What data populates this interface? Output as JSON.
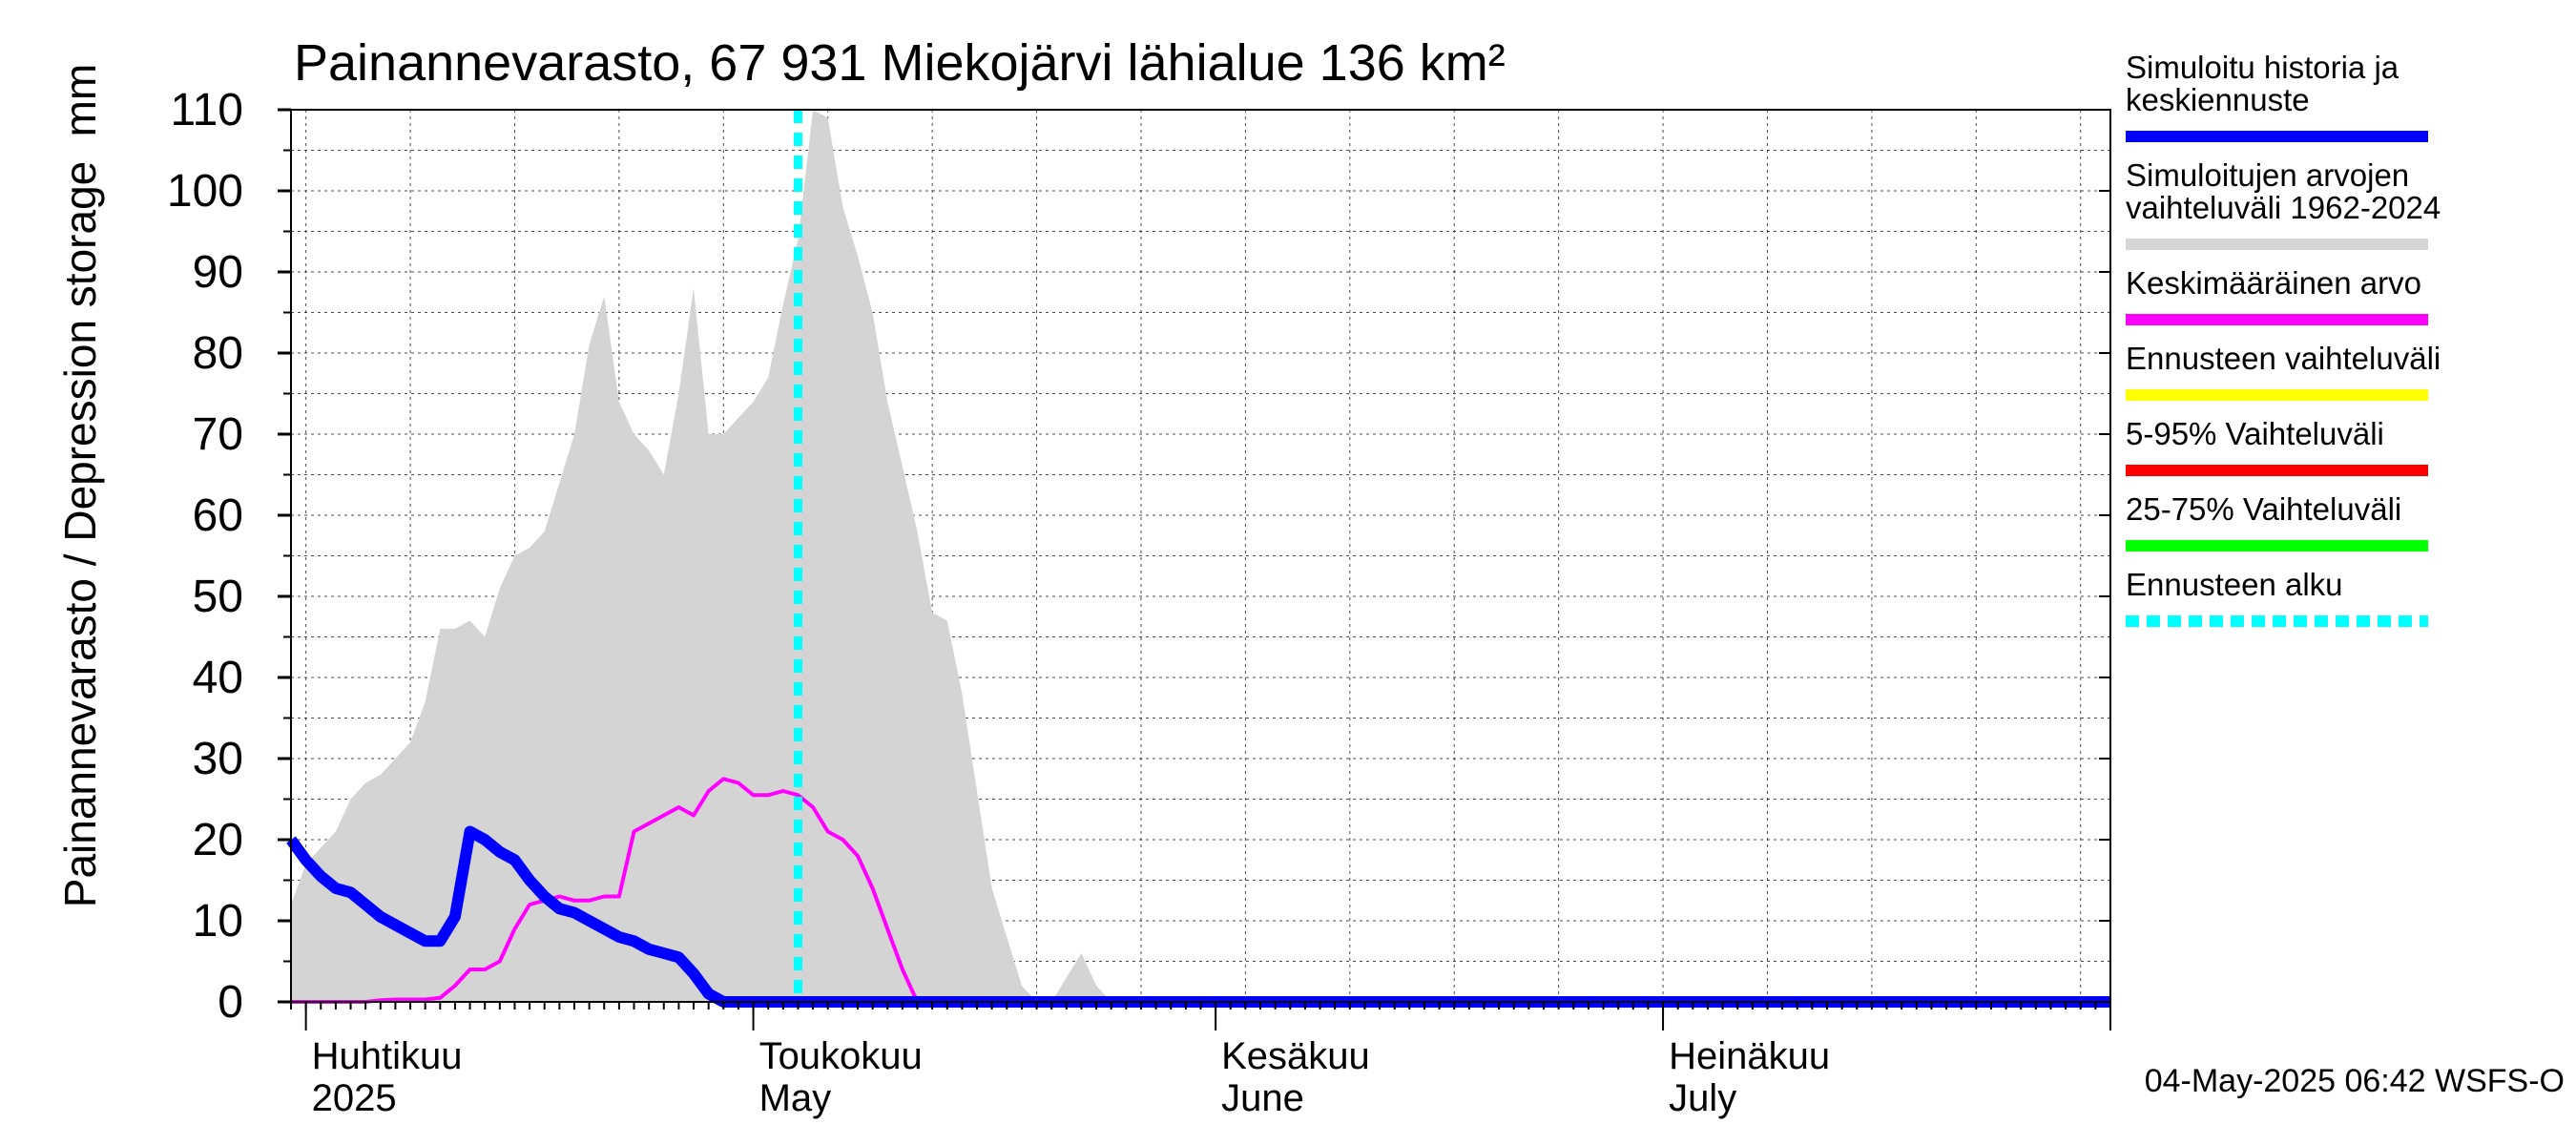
{
  "chart_data": {
    "type": "area",
    "title": "Painannevarasto, 67 931 Miekojärvi lähialue 136 km²",
    "ylabel": "Painannevarasto / Depression storage",
    "yunit": "mm",
    "ylim": [
      0,
      110
    ],
    "yticks": [
      0,
      10,
      20,
      30,
      40,
      50,
      60,
      70,
      80,
      90,
      100,
      110
    ],
    "x_range": [
      "2025-03-31",
      "2025-07-31"
    ],
    "grid": true,
    "legend_position": "right",
    "month_labels": [
      {
        "fi": "Huhtikuu",
        "en": "2025",
        "date": "2025-04-01"
      },
      {
        "fi": "Toukokuu",
        "en": "May",
        "date": "2025-05-01"
      },
      {
        "fi": "Kesäkuu",
        "en": "June",
        "date": "2025-06-01"
      },
      {
        "fi": "Heinäkuu",
        "en": "July",
        "date": "2025-07-01"
      }
    ],
    "forecast_start": "2025-05-04",
    "series": [
      {
        "name": "Simuloitujen arvojen vaihteluväli 1962-2024",
        "kind": "band",
        "color": "#d4d4d4",
        "x": [
          "2025-03-31",
          "2025-04-01",
          "2025-04-02",
          "2025-04-03",
          "2025-04-04",
          "2025-04-05",
          "2025-04-06",
          "2025-04-07",
          "2025-04-08",
          "2025-04-09",
          "2025-04-10",
          "2025-04-11",
          "2025-04-12",
          "2025-04-13",
          "2025-04-14",
          "2025-04-15",
          "2025-04-16",
          "2025-04-17",
          "2025-04-18",
          "2025-04-19",
          "2025-04-20",
          "2025-04-21",
          "2025-04-22",
          "2025-04-23",
          "2025-04-24",
          "2025-04-25",
          "2025-04-26",
          "2025-04-27",
          "2025-04-28",
          "2025-04-29",
          "2025-04-30",
          "2025-05-01",
          "2025-05-02",
          "2025-05-03",
          "2025-05-04",
          "2025-05-05",
          "2025-05-06",
          "2025-05-07",
          "2025-05-08",
          "2025-05-09",
          "2025-05-10",
          "2025-05-11",
          "2025-05-12",
          "2025-05-13",
          "2025-05-14",
          "2025-05-15",
          "2025-05-16",
          "2025-05-17",
          "2025-05-18",
          "2025-05-19",
          "2025-05-20",
          "2025-05-21",
          "2025-05-22",
          "2025-05-23",
          "2025-05-24",
          "2025-05-25",
          "2025-05-26",
          "2025-05-27",
          "2025-05-28",
          "2025-05-29",
          "2025-05-30",
          "2025-05-31",
          "2025-06-01",
          "2025-07-31"
        ],
        "upper": [
          12,
          17,
          19,
          21,
          25,
          27,
          28,
          30,
          32,
          37,
          46,
          46,
          47,
          45,
          51,
          55,
          56,
          58,
          64,
          70,
          81,
          87,
          74,
          70,
          68,
          65,
          75,
          88,
          70,
          70,
          72,
          74,
          77,
          86,
          94,
          110,
          109,
          98,
          92,
          85,
          74,
          66,
          58,
          48,
          47,
          38,
          26,
          14,
          8,
          2,
          0,
          0,
          3,
          6,
          2,
          0,
          0,
          0,
          0,
          0,
          0,
          0,
          0,
          0
        ],
        "lower": [
          0,
          0,
          0,
          0,
          0,
          0,
          0,
          0,
          0,
          0,
          0,
          0,
          0,
          0,
          0,
          0,
          0,
          0,
          0,
          0,
          0,
          0,
          0,
          0,
          0,
          0,
          0,
          0,
          0,
          0,
          0,
          0,
          0,
          0,
          0,
          0,
          0,
          0,
          0,
          0,
          0,
          0,
          0,
          0,
          0,
          0,
          0,
          0,
          0,
          0,
          0,
          0,
          0,
          0,
          0,
          0,
          0,
          0,
          0,
          0,
          0,
          0,
          0,
          0
        ]
      },
      {
        "name": "Keskimääräinen arvo",
        "kind": "line",
        "color": "#ff00ff",
        "x": [
          "2025-03-31",
          "2025-04-01",
          "2025-04-02",
          "2025-04-03",
          "2025-04-04",
          "2025-04-05",
          "2025-04-06",
          "2025-04-07",
          "2025-04-08",
          "2025-04-09",
          "2025-04-10",
          "2025-04-11",
          "2025-04-12",
          "2025-04-13",
          "2025-04-14",
          "2025-04-15",
          "2025-04-16",
          "2025-04-17",
          "2025-04-18",
          "2025-04-19",
          "2025-04-20",
          "2025-04-21",
          "2025-04-22",
          "2025-04-23",
          "2025-04-24",
          "2025-04-25",
          "2025-04-26",
          "2025-04-27",
          "2025-04-28",
          "2025-04-29",
          "2025-04-30",
          "2025-05-01",
          "2025-05-02",
          "2025-05-03",
          "2025-05-04",
          "2025-05-05",
          "2025-05-06",
          "2025-05-07",
          "2025-05-08",
          "2025-05-09",
          "2025-05-10",
          "2025-05-11",
          "2025-05-12",
          "2025-05-13",
          "2025-05-14",
          "2025-07-31"
        ],
        "y": [
          0,
          0,
          0,
          0,
          0,
          0,
          0.2,
          0.3,
          0.3,
          0.3,
          0.5,
          2,
          4,
          4,
          5,
          9,
          12,
          12.5,
          13,
          12.5,
          12.5,
          13,
          13,
          21,
          22,
          23,
          24,
          23,
          26,
          27.5,
          27,
          25.5,
          25.5,
          26,
          25.5,
          24,
          21,
          20,
          18,
          14,
          9,
          4,
          0,
          0,
          0,
          0
        ]
      },
      {
        "name": "Simuloitu historia ja keskiennuste",
        "kind": "line",
        "color": "#0000ff",
        "x": [
          "2025-03-31",
          "2025-04-01",
          "2025-04-02",
          "2025-04-03",
          "2025-04-04",
          "2025-04-05",
          "2025-04-06",
          "2025-04-07",
          "2025-04-08",
          "2025-04-09",
          "2025-04-10",
          "2025-04-11",
          "2025-04-12",
          "2025-04-13",
          "2025-04-14",
          "2025-04-15",
          "2025-04-16",
          "2025-04-17",
          "2025-04-18",
          "2025-04-19",
          "2025-04-20",
          "2025-04-21",
          "2025-04-22",
          "2025-04-23",
          "2025-04-24",
          "2025-04-25",
          "2025-04-26",
          "2025-04-27",
          "2025-04-28",
          "2025-04-29",
          "2025-04-30",
          "2025-05-01",
          "2025-05-02",
          "2025-05-03",
          "2025-05-04",
          "2025-05-05",
          "2025-07-31"
        ],
        "y": [
          20,
          17.5,
          15.5,
          14,
          13.5,
          12,
          10.5,
          9.5,
          8.5,
          7.5,
          7.5,
          10.5,
          21,
          20,
          18.5,
          17.5,
          15,
          13,
          11.5,
          11,
          10,
          9,
          8,
          7.5,
          6.5,
          6,
          5.5,
          3.5,
          1,
          0,
          0,
          0,
          0,
          0,
          0,
          0,
          0
        ]
      }
    ],
    "legend": [
      {
        "label": "Simuloitu historia ja keskiennuste",
        "color": "#0000ff",
        "style": "solid"
      },
      {
        "label": "Simuloitujen arvojen vaihteluväli 1962-2024",
        "color": "#d4d4d4",
        "style": "solid"
      },
      {
        "label": "Keskimääräinen arvo",
        "color": "#ff00ff",
        "style": "solid"
      },
      {
        "label": "Ennusteen vaihteluväli",
        "color": "#ffff00",
        "style": "solid"
      },
      {
        "label": "5-95% Vaihteluväli",
        "color": "#ff0000",
        "style": "solid"
      },
      {
        "label": "25-75% Vaihteluväli",
        "color": "#00ff00",
        "style": "solid"
      },
      {
        "label": "Ennusteen alku",
        "color": "#00ffff",
        "style": "dashed"
      }
    ],
    "footer": "04-May-2025 06:42 WSFS-O"
  }
}
